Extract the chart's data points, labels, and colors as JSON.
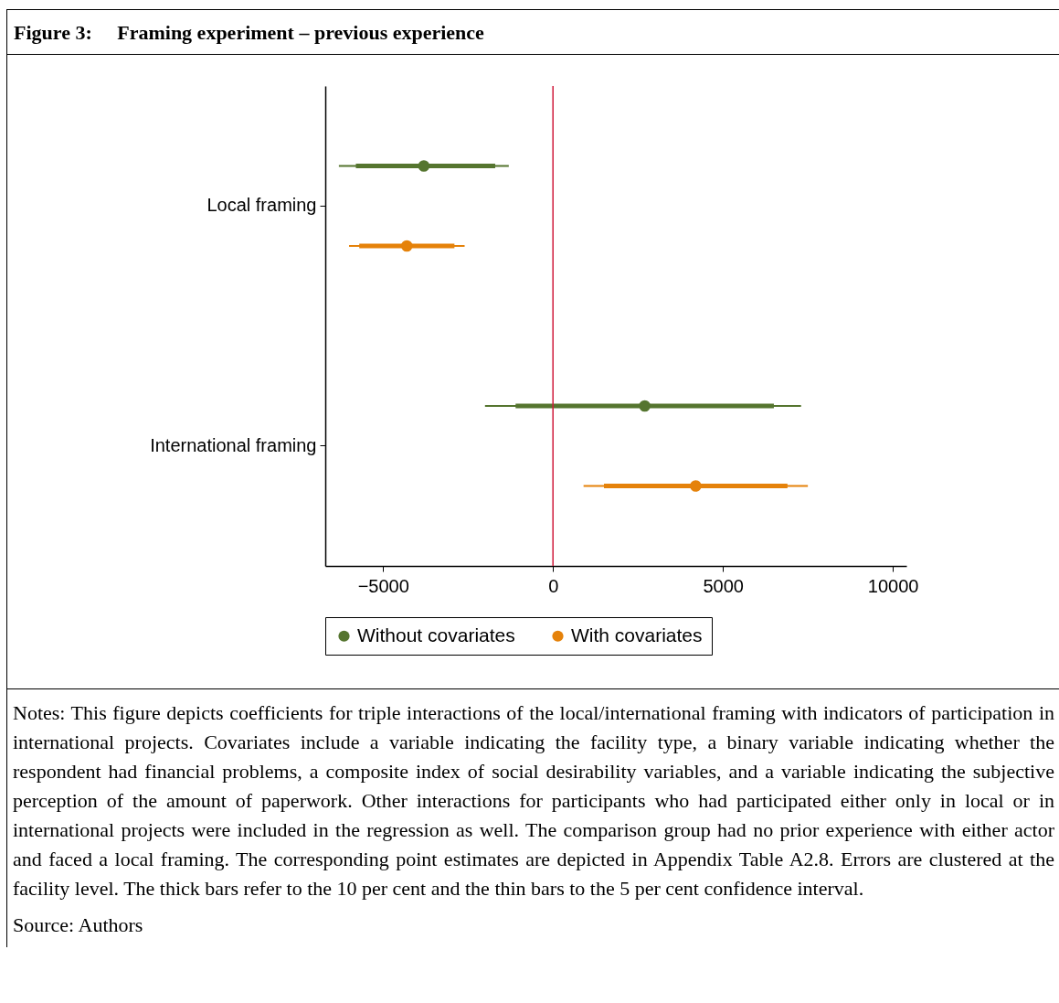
{
  "chart_data": {
    "type": "scatter",
    "orientation": "horizontal",
    "title": "Figure 3:     Framing experiment – previous experience",
    "categories": [
      "Local framing",
      "International framing"
    ],
    "series": [
      {
        "name": "Without covariates",
        "type": "scatter",
        "color": "#55752f",
        "values": [
          -3800,
          2700
        ],
        "errors": [
          [
            -6300,
            -1300
          ],
          [
            -2000,
            7300
          ]
        ]
      },
      {
        "name": "With covariates",
        "type": "scatter",
        "color": "#e5820a",
        "values": [
          -4300,
          4200
        ],
        "errors": [
          [
            -6000,
            -2600
          ],
          [
            900,
            7500
          ]
        ]
      },
      {
        "type": "bar",
        "color": "#55752f",
        "base": [
          -5800,
          -1100
        ],
        "values": [
          4100,
          7600
        ]
      },
      {
        "type": "bar",
        "color": "#e5820a",
        "base": [
          -5700,
          1500
        ],
        "values": [
          2800,
          5400
        ]
      }
    ],
    "xlim": [
      -6700,
      10400
    ],
    "xticks": [
      -5000,
      0,
      5000,
      10000
    ],
    "ref_lines": [
      {
        "axis": "x",
        "value": 0,
        "color": "#d01c3c"
      }
    ],
    "marker": "circle",
    "legend": "bottom",
    "grid": false,
    "annotations": [
      "Notes: This figure depicts coefficients for triple interactions of the local/international framing with indicators of participation in international projects. Covariates include a variable indicating the facility type, a binary variable indicating whether the respondent had financial problems, a composite index of social desirability variables, and a variable indicating the subjective perception of the amount of paperwork. Other interactions for participants who had participated either only in local or in international projects were included in the regression as well. The comparison group had no prior experience with either actor and faced a local framing. The corresponding point estimates are depicted in Appendix Table A2.8. Errors are clustered at the facility level. The thick bars refer to the 10 per cent and the thin bars to the 5 per cent confidence interval.",
      "Source: Authors"
    ]
  }
}
